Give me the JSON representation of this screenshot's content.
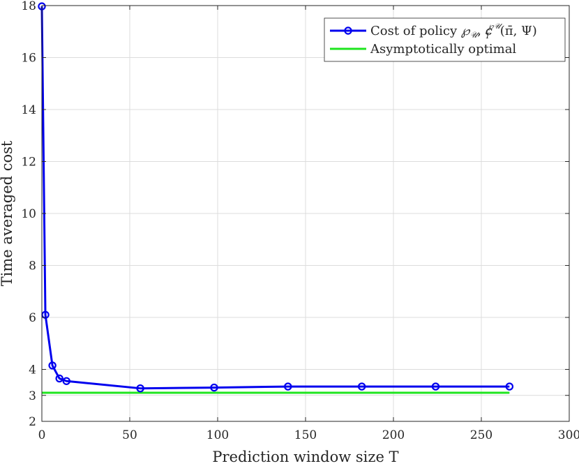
{
  "chart_data": {
    "type": "line",
    "xlabel": "Prediction window size T",
    "ylabel": "Time averaged cost",
    "xlim": [
      0,
      300
    ],
    "ylim": [
      2,
      18
    ],
    "xticks": [
      0,
      50,
      100,
      150,
      200,
      250,
      300
    ],
    "yticks": [
      2,
      3,
      4,
      6,
      8,
      10,
      12,
      14,
      16,
      18
    ],
    "grid": true,
    "legend_position": "top-right",
    "series": [
      {
        "name": "Cost of policy ℘𝒰, c_T^{℘𝒰}(π̄, Ψ)",
        "color": "#0000ee",
        "marker": "circle",
        "x": [
          0,
          2,
          6,
          10,
          14,
          56,
          98,
          140,
          182,
          224,
          266
        ],
        "y": [
          17.97,
          6.1,
          4.15,
          3.65,
          3.55,
          3.27,
          3.3,
          3.34,
          3.34,
          3.34,
          3.34
        ]
      },
      {
        "name": "Asymptotically optimal",
        "color": "#1fe51f",
        "marker": "none",
        "x": [
          0,
          266
        ],
        "y": [
          3.1,
          3.1
        ]
      }
    ]
  }
}
